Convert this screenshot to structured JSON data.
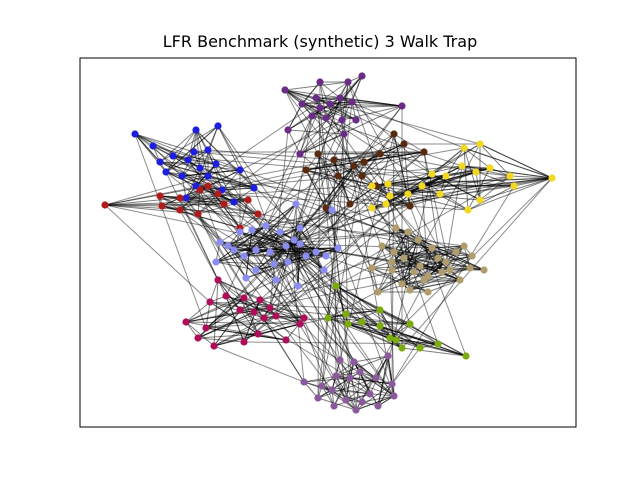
{
  "title": "LFR Benchmark (synthetic) 3 Walk Trap",
  "communities": [
    {
      "name": "purple",
      "color": "#6a2c86"
    },
    {
      "name": "blue",
      "color": "#1e1ee0"
    },
    {
      "name": "red",
      "color": "#b01c1c"
    },
    {
      "name": "brown",
      "color": "#5a2a10"
    },
    {
      "name": "yellow",
      "color": "#f2d820"
    },
    {
      "name": "lavender",
      "color": "#8a8cf0"
    },
    {
      "name": "tan",
      "color": "#b09c6c"
    },
    {
      "name": "magenta",
      "color": "#b00c5c"
    },
    {
      "name": "green",
      "color": "#7aac0c"
    },
    {
      "name": "violet",
      "color": "#8a5a9c"
    }
  ],
  "edge_color": "#000000"
}
